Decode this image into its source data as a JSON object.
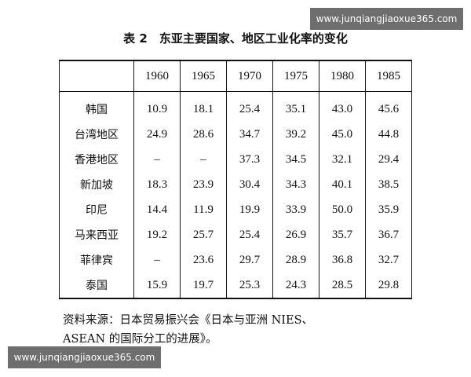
{
  "watermark_top": "www.junqiangjiaoxue365.com",
  "header": {
    "title": "表 2　东亚主要国家、地区工业化率的变化"
  },
  "table": {
    "columns": [
      "1960",
      "1965",
      "1970",
      "1975",
      "1980",
      "1985"
    ],
    "rows": [
      [
        "韩国",
        "10.9",
        "18.1",
        "25.4",
        "35.1",
        "43.0",
        "45.6"
      ],
      [
        "台湾地区",
        "24.9",
        "28.6",
        "34.7",
        "39.2",
        "45.0",
        "44.8"
      ],
      [
        "香港地区",
        "–",
        "–",
        "37.3",
        "34.5",
        "32.1",
        "29.4"
      ],
      [
        "新加坡",
        "18.3",
        "23.9",
        "30.4",
        "34.3",
        "40.1",
        "38.5"
      ],
      [
        "印尼",
        "14.4",
        "11.9",
        "19.9",
        "33.9",
        "50.0",
        "35.9"
      ],
      [
        "马来西亚",
        "19.2",
        "25.7",
        "25.4",
        "26.9",
        "35.7",
        "36.7"
      ],
      [
        "菲律宾",
        "–",
        "23.6",
        "29.7",
        "28.9",
        "36.8",
        "32.7"
      ],
      [
        "泰国",
        "15.9",
        "19.7",
        "25.3",
        "24.3",
        "28.5",
        "29.8"
      ]
    ]
  },
  "source": {
    "line1": "资料来源：日本贸易振兴会《日本与亚洲 NIES、",
    "line2": "ASEAN 的国际分工的进展》。"
  },
  "watermark_bottom": "www.junqiangjiaoxue365.com"
}
